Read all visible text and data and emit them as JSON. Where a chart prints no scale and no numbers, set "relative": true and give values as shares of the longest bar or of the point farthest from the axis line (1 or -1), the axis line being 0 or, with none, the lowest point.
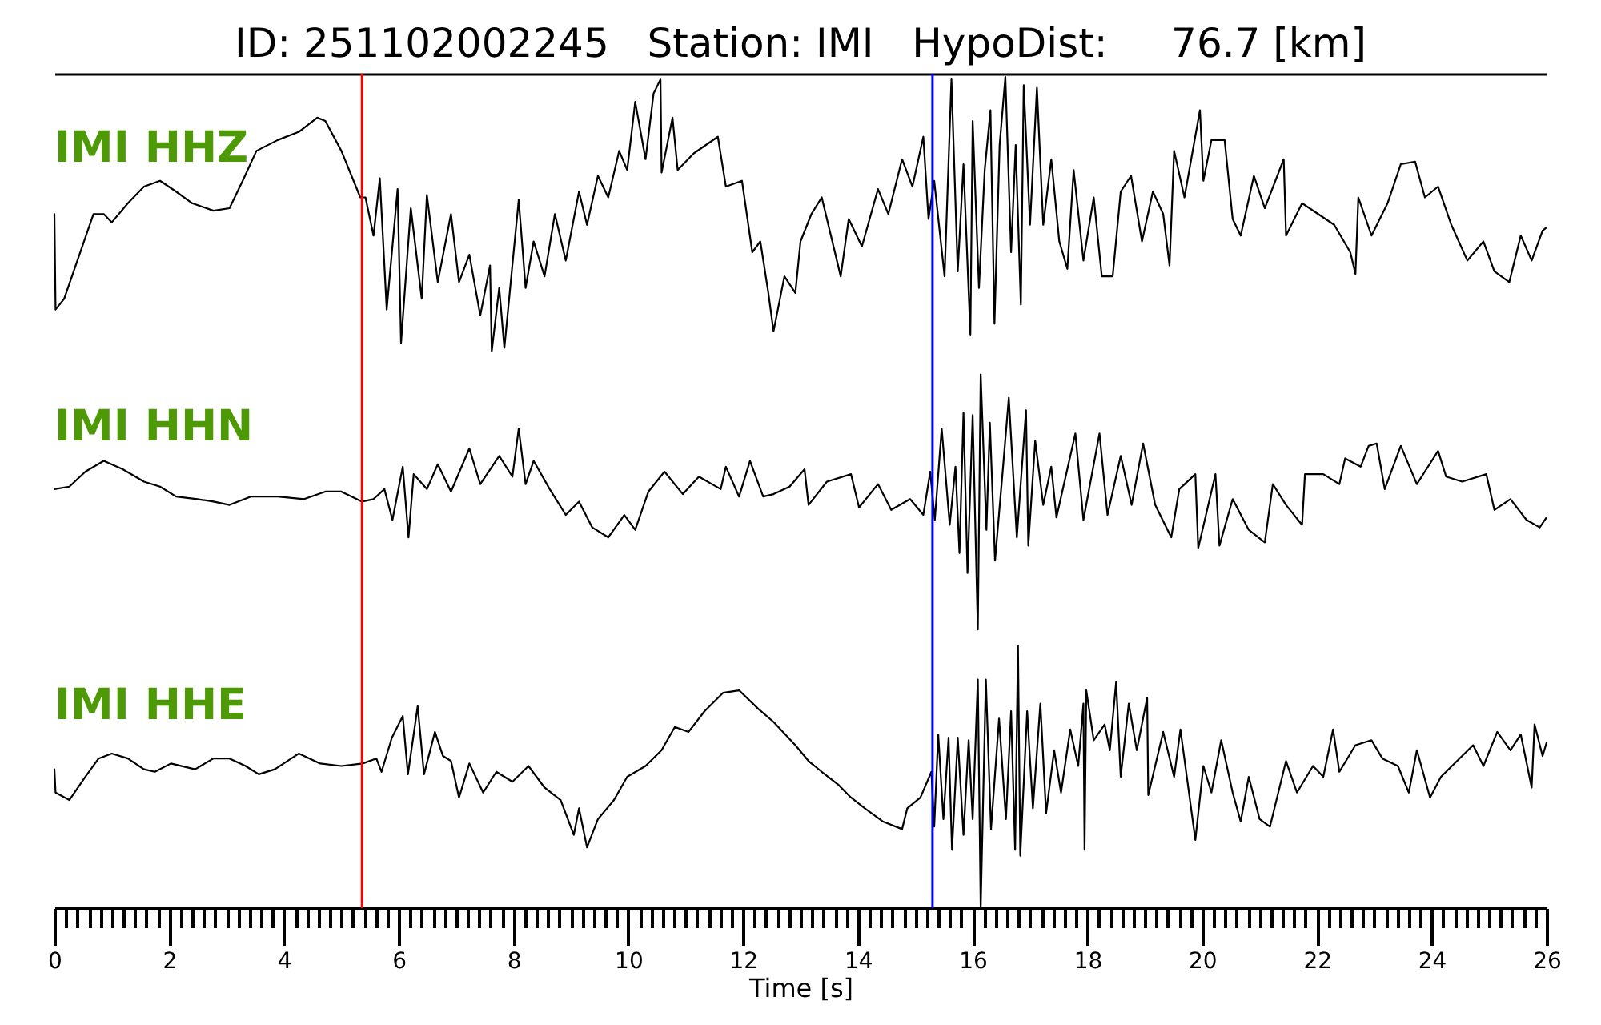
{
  "chart_data": {
    "type": "line",
    "title": "ID: 251102002245   Station: IMI   HypoDist:     76.7 [km]",
    "relative": true,
    "xlim": [
      0,
      26
    ],
    "xlabel": "Time [s]",
    "xticks": [
      0,
      {
        "value": 0.2,
        "label": null
      },
      {
        "value": 0.4,
        "label": null
      },
      {
        "value": 0.6,
        "label": null
      },
      {
        "value": 0.8,
        "label": null
      },
      {
        "value": 1,
        "label": null
      },
      {
        "value": 1.2,
        "label": null
      },
      {
        "value": 1.4,
        "label": null
      },
      {
        "value": 1.6,
        "label": null
      },
      {
        "value": 1.8,
        "label": null
      },
      2,
      {
        "value": 2.2,
        "label": null
      },
      {
        "value": 2.4,
        "label": null
      },
      {
        "value": 2.6,
        "label": null
      },
      {
        "value": 2.8,
        "label": null
      },
      {
        "value": 3,
        "label": null
      },
      {
        "value": 3.2,
        "label": null
      },
      {
        "value": 3.4,
        "label": null
      },
      {
        "value": 3.6,
        "label": null
      },
      {
        "value": 3.8,
        "label": null
      },
      4,
      {
        "value": 4.2,
        "label": null
      },
      {
        "value": 4.4,
        "label": null
      },
      {
        "value": 4.6,
        "label": null
      },
      {
        "value": 4.8,
        "label": null
      },
      {
        "value": 5,
        "label": null
      },
      {
        "value": 5.2,
        "label": null
      },
      {
        "value": 5.4,
        "label": null
      },
      {
        "value": 5.6,
        "label": null
      },
      {
        "value": 5.8,
        "label": null
      },
      6,
      {
        "value": 6.2,
        "label": null
      },
      {
        "value": 6.4,
        "label": null
      },
      {
        "value": 6.6,
        "label": null
      },
      {
        "value": 6.8,
        "label": null
      },
      {
        "value": 7,
        "label": null
      },
      {
        "value": 7.2,
        "label": null
      },
      {
        "value": 7.4,
        "label": null
      },
      {
        "value": 7.6,
        "label": null
      },
      {
        "value": 7.8,
        "label": null
      },
      8,
      {
        "value": 8.2,
        "label": null
      },
      {
        "value": 8.4,
        "label": null
      },
      {
        "value": 8.6,
        "label": null
      },
      {
        "value": 8.8,
        "label": null
      },
      {
        "value": 9,
        "label": null
      },
      {
        "value": 9.2,
        "label": null
      },
      {
        "value": 9.4,
        "label": null
      },
      {
        "value": 9.6,
        "label": null
      },
      {
        "value": 9.8,
        "label": null
      },
      10,
      {
        "value": 10.2,
        "label": null
      },
      {
        "value": 10.4,
        "label": null
      },
      {
        "value": 10.6,
        "label": null
      },
      {
        "value": 10.8,
        "label": null
      },
      {
        "value": 11,
        "label": null
      },
      {
        "value": 11.2,
        "label": null
      },
      {
        "value": 11.4,
        "label": null
      },
      {
        "value": 11.6,
        "label": null
      },
      {
        "value": 11.8,
        "label": null
      },
      12,
      {
        "value": 12.2,
        "label": null
      },
      {
        "value": 12.4,
        "label": null
      },
      {
        "value": 12.6,
        "label": null
      },
      {
        "value": 12.8,
        "label": null
      },
      {
        "value": 13,
        "label": null
      },
      {
        "value": 13.2,
        "label": null
      },
      {
        "value": 13.4,
        "label": null
      },
      {
        "value": 13.6,
        "label": null
      },
      {
        "value": 13.8,
        "label": null
      },
      14,
      {
        "value": 14.2,
        "label": null
      },
      {
        "value": 14.4,
        "label": null
      },
      {
        "value": 14.6,
        "label": null
      },
      {
        "value": 14.8,
        "label": null
      },
      {
        "value": 15,
        "label": null
      },
      {
        "value": 15.2,
        "label": null
      },
      {
        "value": 15.4,
        "label": null
      },
      {
        "value": 15.6,
        "label": null
      },
      {
        "value": 15.8,
        "label": null
      },
      16,
      {
        "value": 16.2,
        "label": null
      },
      {
        "value": 16.4,
        "label": null
      },
      {
        "value": 16.6,
        "label": null
      },
      {
        "value": 16.8,
        "label": null
      },
      {
        "value": 17,
        "label": null
      },
      {
        "value": 17.2,
        "label": null
      },
      {
        "value": 17.4,
        "label": null
      },
      {
        "value": 17.6,
        "label": null
      },
      {
        "value": 17.8,
        "label": null
      },
      18,
      {
        "value": 18.2,
        "label": null
      },
      {
        "value": 18.4,
        "label": null
      },
      {
        "value": 18.6,
        "label": null
      },
      {
        "value": 18.8,
        "label": null
      },
      {
        "value": 19,
        "label": null
      },
      {
        "value": 19.2,
        "label": null
      },
      {
        "value": 19.4,
        "label": null
      },
      {
        "value": 19.6,
        "label": null
      },
      {
        "value": 19.8,
        "label": null
      },
      20,
      {
        "value": 20.2,
        "label": null
      },
      {
        "value": 20.4,
        "label": null
      },
      {
        "value": 20.6,
        "label": null
      },
      {
        "value": 20.8,
        "label": null
      },
      {
        "value": 21,
        "label": null
      },
      {
        "value": 21.2,
        "label": null
      },
      {
        "value": 21.4,
        "label": null
      },
      {
        "value": 21.6,
        "label": null
      },
      {
        "value": 21.8,
        "label": null
      },
      22,
      {
        "value": 22.2,
        "label": null
      },
      {
        "value": 22.4,
        "label": null
      },
      {
        "value": 22.6,
        "label": null
      },
      {
        "value": 22.8,
        "label": null
      },
      {
        "value": 23,
        "label": null
      },
      {
        "value": 23.2,
        "label": null
      },
      {
        "value": 23.4,
        "label": null
      },
      {
        "value": 23.6,
        "label": null
      },
      {
        "value": 23.8,
        "label": null
      },
      24,
      {
        "value": 24.2,
        "label": null
      },
      {
        "value": 24.4,
        "label": null
      },
      {
        "value": 24.6,
        "label": null
      },
      {
        "value": 24.8,
        "label": null
      },
      {
        "value": 25,
        "label": null
      },
      {
        "value": 25.2,
        "label": null
      },
      {
        "value": 25.4,
        "label": null
      },
      {
        "value": 25.6,
        "label": null
      },
      {
        "value": 25.8,
        "label": null
      },
      26
    ],
    "ref_lines": [
      {
        "axis": "x",
        "value": 5.36,
        "color": "#ff0000"
      },
      {
        "axis": "x",
        "value": 15.3,
        "color": "#0000ff"
      }
    ],
    "series": [
      {
        "name": "IMI HHZ",
        "color": "#000000",
        "x": [
          0,
          0.02,
          0.17,
          0.45,
          0.68,
          0.86,
          1.0,
          1.28,
          1.56,
          1.84,
          2.12,
          2.4,
          2.77,
          3.05,
          3.28,
          3.52,
          3.89,
          4.26,
          4.58,
          4.72,
          5.0,
          5.33,
          5.42,
          5.56,
          5.67,
          5.79,
          5.98,
          6.04,
          6.21,
          6.4,
          6.49,
          6.68,
          6.91,
          7.05,
          7.23,
          7.42,
          7.59,
          7.62,
          7.75,
          7.84,
          8.09,
          8.21,
          8.35,
          8.54,
          8.72,
          8.91,
          9.14,
          9.28,
          9.47,
          9.65,
          9.84,
          9.98,
          10.12,
          10.3,
          10.44,
          10.56,
          10.58,
          10.77,
          10.86,
          11.14,
          11.56,
          11.7,
          11.98,
          12.16,
          12.3,
          12.44,
          12.53,
          12.72,
          12.91,
          13.0,
          13.19,
          13.37,
          13.7,
          13.84,
          14.07,
          14.35,
          14.53,
          14.77,
          14.95,
          15.14,
          15.23,
          15.33,
          15.51,
          15.63,
          15.74,
          15.84,
          15.96,
          16.0,
          16.11,
          16.21,
          16.31,
          16.38,
          16.47,
          16.57,
          16.67,
          16.75,
          16.84,
          16.89,
          17.0,
          17.12,
          17.23,
          17.37,
          17.51,
          17.65,
          17.76,
          17.93,
          18.11,
          18.25,
          18.44,
          18.58,
          18.76,
          18.95,
          19.14,
          19.32,
          19.43,
          19.51,
          19.69,
          19.96,
          20.02,
          20.16,
          20.39,
          20.53,
          20.67,
          20.9,
          21.09,
          21.42,
          21.46,
          21.74,
          22.02,
          22.3,
          22.58,
          22.67,
          22.72,
          22.95,
          23.23,
          23.46,
          23.71,
          23.88,
          24.11,
          24.34,
          24.62,
          24.9,
          25.09,
          25.35,
          25.55,
          25.74,
          25.93,
          26.0
        ],
        "values": [
          0.835,
          0.72,
          0.733,
          0.789,
          0.835,
          0.835,
          0.825,
          0.848,
          0.868,
          0.875,
          0.862,
          0.848,
          0.839,
          0.842,
          0.875,
          0.911,
          0.924,
          0.934,
          0.951,
          0.947,
          0.911,
          0.855,
          0.855,
          0.809,
          0.878,
          0.72,
          0.865,
          0.68,
          0.842,
          0.733,
          0.858,
          0.753,
          0.835,
          0.753,
          0.786,
          0.713,
          0.773,
          0.67,
          0.746,
          0.674,
          0.852,
          0.746,
          0.802,
          0.76,
          0.835,
          0.779,
          0.862,
          0.822,
          0.881,
          0.855,
          0.911,
          0.888,
          0.97,
          0.901,
          0.98,
          0.997,
          0.885,
          0.951,
          0.888,
          0.908,
          0.928,
          0.868,
          0.875,
          0.789,
          0.802,
          0.74,
          0.694,
          0.76,
          0.74,
          0.802,
          0.835,
          0.855,
          0.76,
          0.829,
          0.796,
          0.865,
          0.835,
          0.901,
          0.868,
          0.928,
          0.829,
          0.875,
          0.76,
          0.997,
          0.766,
          0.895,
          0.69,
          0.947,
          0.746,
          0.888,
          0.96,
          0.703,
          0.918,
          1.0,
          0.789,
          0.918,
          0.726,
          0.99,
          0.822,
          0.987,
          0.822,
          0.901,
          0.802,
          0.769,
          0.888,
          0.779,
          0.855,
          0.76,
          0.76,
          0.862,
          0.881,
          0.802,
          0.862,
          0.835,
          0.773,
          0.911,
          0.855,
          0.96,
          0.875,
          0.924,
          0.924,
          0.829,
          0.809,
          0.881,
          0.842,
          0.901,
          0.809,
          0.848,
          0.835,
          0.822,
          0.789,
          0.763,
          0.855,
          0.809,
          0.848,
          0.895,
          0.898,
          0.855,
          0.868,
          0.822,
          0.779,
          0.802,
          0.766,
          0.753,
          0.809,
          0.779,
          0.815,
          0.819
        ]
      },
      {
        "name": "IMI HHN",
        "color": "#000000",
        "x": [
          0,
          0.26,
          0.54,
          0.86,
          1.19,
          1.56,
          1.84,
          2.12,
          2.49,
          2.77,
          3.05,
          3.42,
          3.89,
          4.35,
          4.72,
          5.0,
          5.36,
          5.56,
          5.75,
          5.89,
          6.07,
          6.17,
          6.26,
          6.49,
          6.68,
          6.91,
          7.23,
          7.42,
          7.75,
          7.98,
          8.09,
          8.21,
          8.35,
          8.63,
          8.91,
          9.14,
          9.37,
          9.65,
          9.93,
          10.12,
          10.35,
          10.63,
          10.95,
          11.23,
          11.61,
          11.7,
          11.93,
          12.12,
          12.35,
          12.53,
          12.81,
          13.07,
          13.14,
          13.46,
          13.88,
          14.02,
          14.35,
          14.58,
          14.91,
          15.14,
          15.26,
          15.34,
          15.46,
          15.6,
          15.7,
          15.77,
          15.84,
          15.91,
          16.0,
          16.09,
          16.14,
          16.24,
          16.3,
          16.39,
          16.53,
          16.63,
          16.77,
          16.93,
          16.97,
          17.09,
          17.23,
          17.37,
          17.46,
          17.79,
          17.93,
          18.21,
          18.35,
          18.58,
          18.77,
          18.97,
          19.18,
          19.46,
          19.6,
          19.88,
          19.93,
          20.23,
          20.3,
          20.53,
          20.81,
          21.09,
          21.23,
          21.46,
          21.74,
          21.79,
          22.11,
          22.39,
          22.49,
          22.76,
          22.9,
          23.04,
          23.18,
          23.46,
          23.74,
          24.11,
          24.25,
          24.53,
          24.95,
          25.09,
          25.37,
          25.65,
          25.88,
          26.0
        ],
        "values": [
          0.504,
          0.507,
          0.525,
          0.538,
          0.528,
          0.513,
          0.507,
          0.495,
          0.492,
          0.489,
          0.485,
          0.495,
          0.495,
          0.492,
          0.501,
          0.501,
          0.489,
          0.492,
          0.504,
          0.467,
          0.531,
          0.446,
          0.522,
          0.504,
          0.534,
          0.501,
          0.553,
          0.51,
          0.544,
          0.519,
          0.577,
          0.51,
          0.538,
          0.504,
          0.473,
          0.489,
          0.458,
          0.446,
          0.473,
          0.455,
          0.501,
          0.525,
          0.498,
          0.519,
          0.504,
          0.531,
          0.495,
          0.538,
          0.495,
          0.498,
          0.507,
          0.528,
          0.485,
          0.513,
          0.522,
          0.482,
          0.51,
          0.479,
          0.492,
          0.473,
          0.525,
          0.467,
          0.577,
          0.461,
          0.531,
          0.427,
          0.596,
          0.403,
          0.593,
          0.335,
          0.642,
          0.455,
          0.584,
          0.418,
          0.531,
          0.614,
          0.446,
          0.599,
          0.436,
          0.562,
          0.485,
          0.531,
          0.47,
          0.571,
          0.467,
          0.571,
          0.473,
          0.544,
          0.485,
          0.559,
          0.485,
          0.446,
          0.504,
          0.522,
          0.433,
          0.522,
          0.436,
          0.492,
          0.455,
          0.44,
          0.51,
          0.485,
          0.461,
          0.522,
          0.522,
          0.51,
          0.541,
          0.531,
          0.556,
          0.559,
          0.504,
          0.556,
          0.51,
          0.55,
          0.519,
          0.513,
          0.522,
          0.479,
          0.492,
          0.467,
          0.458,
          0.47
        ]
      },
      {
        "name": "IMI HHE",
        "color": "#000000",
        "x": [
          0,
          0.02,
          0.26,
          0.54,
          0.77,
          1.0,
          1.28,
          1.56,
          1.75,
          2.03,
          2.45,
          2.77,
          3.05,
          3.33,
          3.56,
          3.84,
          4.26,
          4.63,
          5.0,
          5.37,
          5.61,
          5.7,
          5.88,
          6.07,
          6.16,
          6.33,
          6.44,
          6.63,
          6.77,
          6.91,
          7.05,
          7.23,
          7.47,
          7.7,
          7.98,
          8.26,
          8.54,
          8.82,
          9.05,
          9.14,
          9.28,
          9.47,
          9.75,
          9.98,
          10.3,
          10.58,
          10.81,
          11.05,
          11.33,
          11.65,
          11.93,
          12.26,
          12.53,
          12.91,
          13.14,
          13.37,
          13.65,
          13.88,
          14.12,
          14.44,
          14.77,
          14.86,
          15.09,
          15.28,
          15.33,
          15.4,
          15.49,
          15.58,
          15.64,
          15.74,
          15.84,
          15.93,
          16.0,
          16.09,
          16.14,
          16.23,
          16.32,
          16.46,
          16.58,
          16.67,
          16.74,
          16.79,
          16.83,
          16.95,
          17.05,
          17.18,
          17.28,
          17.42,
          17.54,
          17.7,
          17.84,
          17.93,
          17.95,
          17.98,
          18.11,
          18.3,
          18.39,
          18.5,
          18.58,
          18.72,
          18.86,
          19.04,
          19.06,
          19.32,
          19.51,
          19.62,
          19.88,
          20.02,
          20.16,
          20.33,
          20.53,
          20.67,
          20.81,
          21.0,
          21.18,
          21.46,
          21.65,
          21.93,
          22.11,
          22.28,
          22.39,
          22.67,
          22.95,
          23.14,
          23.41,
          23.6,
          23.74,
          23.97,
          24.16,
          24.44,
          24.72,
          24.9,
          25.14,
          25.37,
          25.55,
          25.74,
          25.79,
          25.93,
          26.0
        ],
        "values": [
          0.167,
          0.139,
          0.13,
          0.158,
          0.18,
          0.186,
          0.18,
          0.167,
          0.164,
          0.174,
          0.167,
          0.18,
          0.18,
          0.171,
          0.161,
          0.167,
          0.186,
          0.174,
          0.171,
          0.174,
          0.18,
          0.164,
          0.205,
          0.231,
          0.161,
          0.243,
          0.161,
          0.212,
          0.183,
          0.177,
          0.133,
          0.174,
          0.139,
          0.164,
          0.152,
          0.171,
          0.145,
          0.13,
          0.088,
          0.12,
          0.073,
          0.107,
          0.13,
          0.158,
          0.171,
          0.19,
          0.218,
          0.212,
          0.237,
          0.259,
          0.262,
          0.24,
          0.224,
          0.196,
          0.177,
          0.164,
          0.149,
          0.133,
          0.12,
          0.104,
          0.095,
          0.12,
          0.133,
          0.164,
          0.098,
          0.209,
          0.107,
          0.205,
          0.07,
          0.205,
          0.088,
          0.202,
          0.107,
          0.275,
          0,
          0.275,
          0.095,
          0.228,
          0.107,
          0.237,
          0.07,
          0.316,
          0.063,
          0.237,
          0.12,
          0.246,
          0.114,
          0.19,
          0.139,
          0.215,
          0.171,
          0.246,
          0.07,
          0.262,
          0.202,
          0.221,
          0.19,
          0.272,
          0.158,
          0.246,
          0.19,
          0.253,
          0.136,
          0.212,
          0.158,
          0.215,
          0.082,
          0.171,
          0.139,
          0.202,
          0.139,
          0.104,
          0.158,
          0.107,
          0.098,
          0.177,
          0.139,
          0.171,
          0.158,
          0.215,
          0.164,
          0.196,
          0.202,
          0.18,
          0.171,
          0.139,
          0.19,
          0.133,
          0.158,
          0.177,
          0.196,
          0.171,
          0.212,
          0.19,
          0.209,
          0.145,
          0.221,
          0.183,
          0.199
        ]
      }
    ]
  }
}
